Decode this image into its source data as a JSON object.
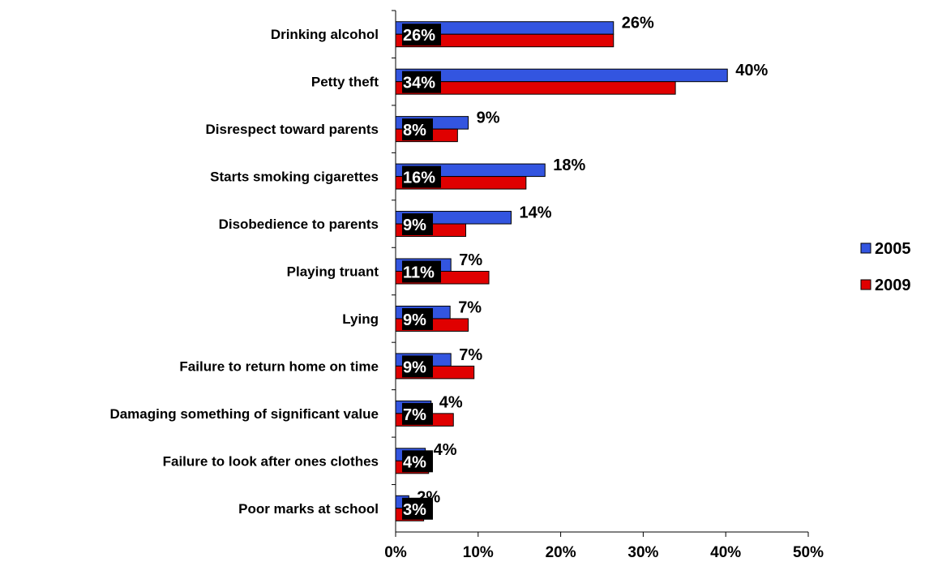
{
  "chart_data": {
    "type": "bar",
    "orientation": "horizontal",
    "categories": [
      "Drinking alcohol",
      "Petty theft",
      "Disrespect toward parents",
      "Starts smoking cigarettes",
      "Disobedience to parents",
      "Playing truant",
      "Lying",
      "Failure to return home on time",
      "Damaging something of significant value",
      "Failure to look after ones clothes",
      "Poor marks at school"
    ],
    "series": [
      {
        "name": "2005",
        "color": "#3355e0",
        "values": [
          26.4,
          40.2,
          8.8,
          18.1,
          14,
          6.7,
          6.6,
          6.7,
          4.3,
          3.6,
          1.6
        ],
        "labels": [
          "26%",
          "40%",
          "9%",
          "18%",
          "14%",
          "7%",
          "7%",
          "7%",
          "4%",
          "4%",
          "2%"
        ]
      },
      {
        "name": "2009",
        "color": "#e00000",
        "values": [
          26.4,
          33.9,
          7.5,
          15.8,
          8.5,
          11.3,
          8.8,
          9.5,
          7,
          4,
          3.4
        ],
        "labels": [
          "26%",
          "34%",
          "8%",
          "16%",
          "9%",
          "11%",
          "9%",
          "9%",
          "7%",
          "4%",
          "3%"
        ]
      }
    ],
    "xlim": [
      0,
      50
    ],
    "xticks": [
      "0%",
      "10%",
      "20%",
      "30%",
      "40%",
      "50%"
    ],
    "title": "",
    "xlabel": "",
    "ylabel": "",
    "grid": false,
    "legend_position": "right"
  }
}
